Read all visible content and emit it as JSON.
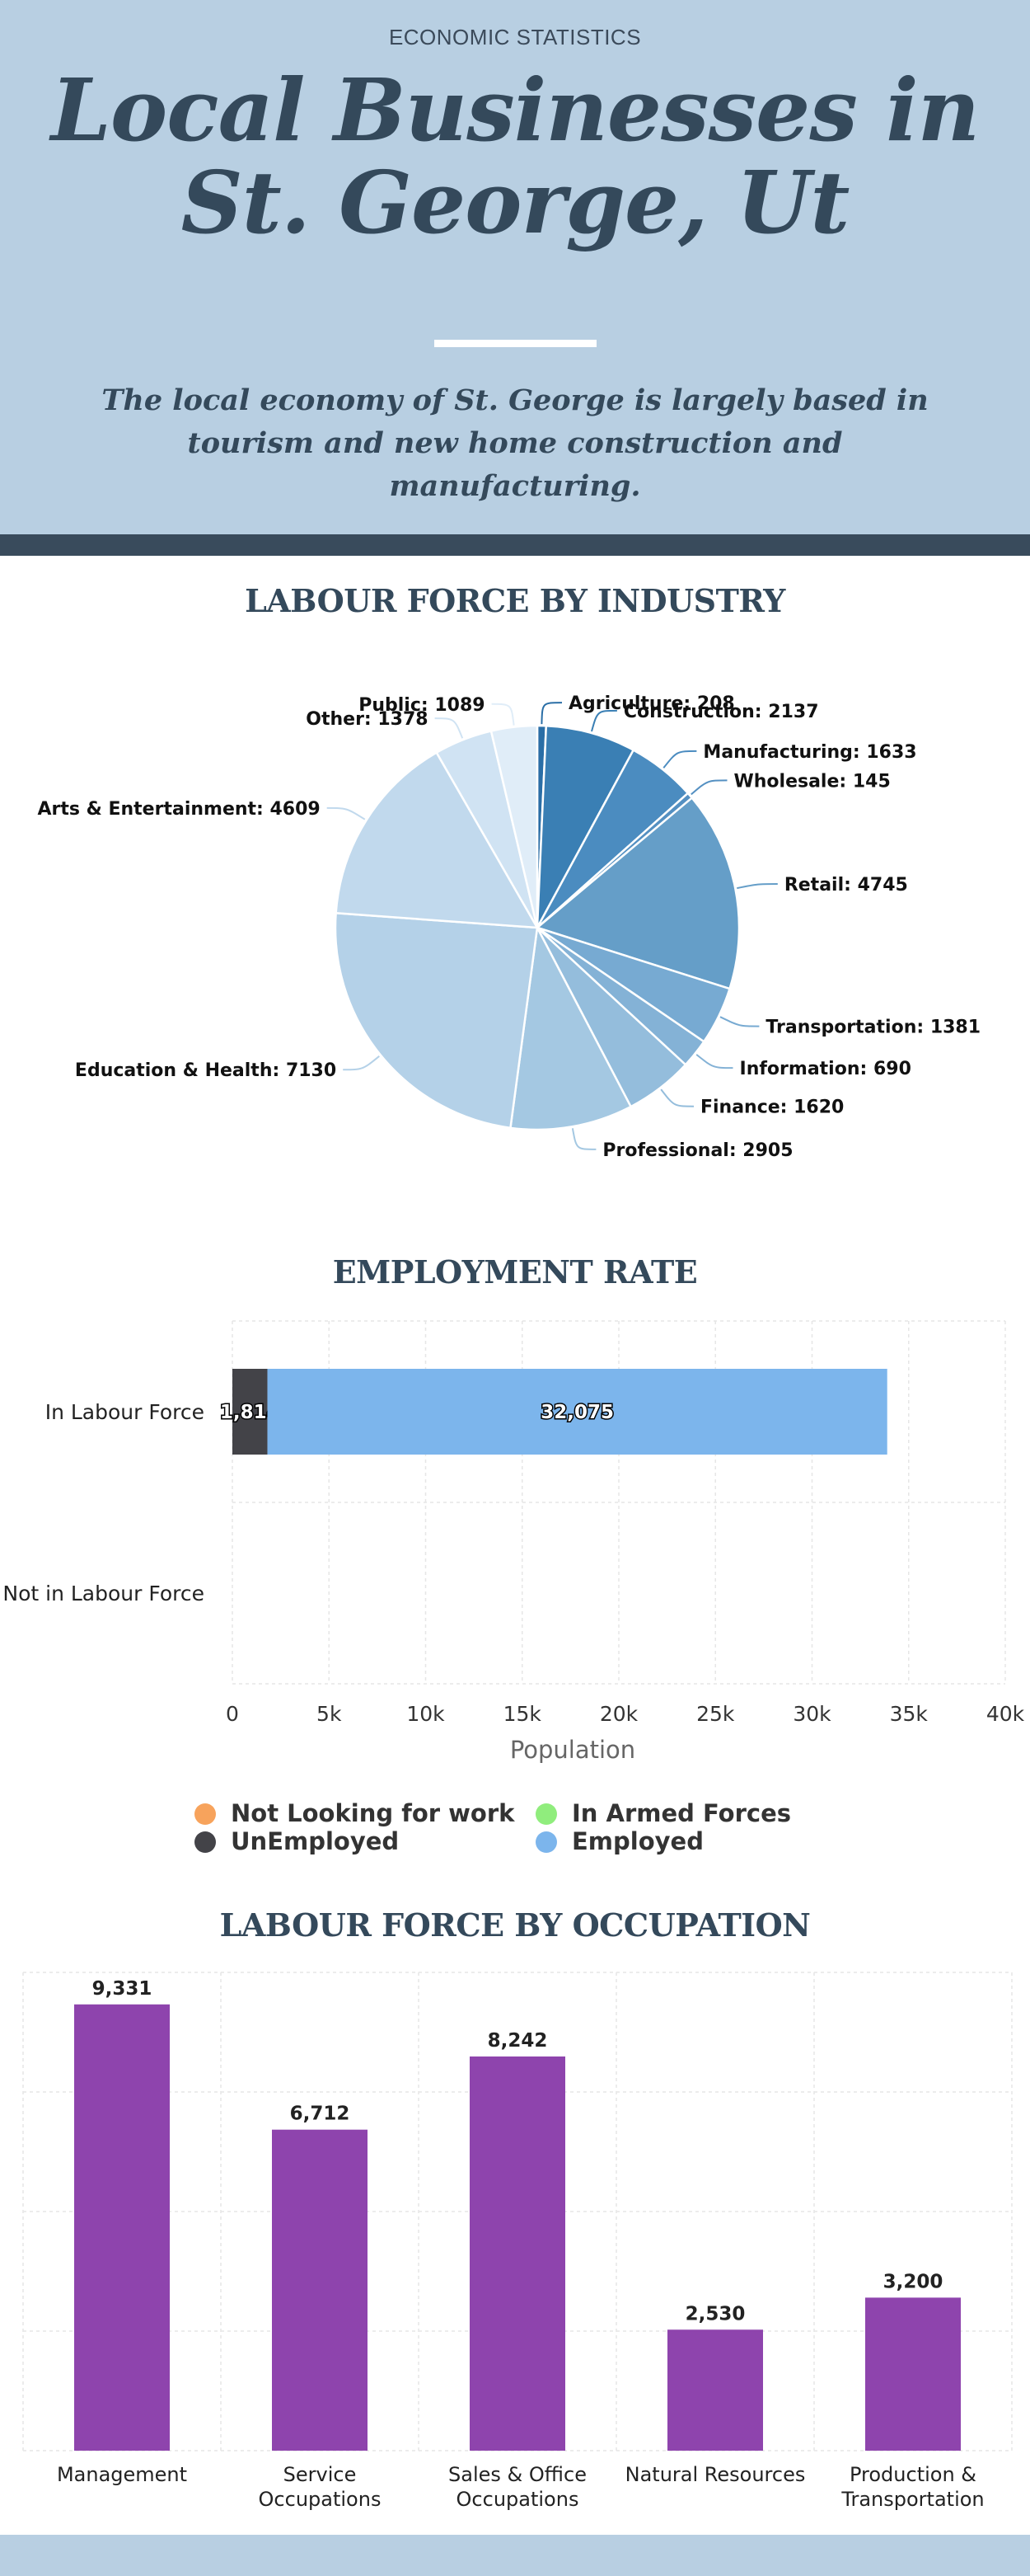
{
  "header": {
    "eyebrow": "ECONOMIC STATISTICS",
    "title": "Local Businesses in St. George, Ut",
    "subtitle": "The local economy of St. George is largely based in tourism and new home construction and manufacturing."
  },
  "sections": {
    "industry_title": "LABOUR FORCE BY INDUSTRY",
    "employment_title": "EMPLOYMENT RATE",
    "occupation_title": "LABOUR FORCE BY OCCUPATION"
  },
  "colors": {
    "header_bg": "#b8cfe2",
    "dark_band": "#394b5c",
    "heading_text": "#34495b",
    "employed": "#7cb5ec",
    "unemployed": "#434348",
    "not_looking": "#f7a35c",
    "armed_forces": "#90ed7d",
    "occupation_bar": "#8e44ad"
  },
  "chart_data": [
    {
      "type": "pie",
      "title": "",
      "slices": [
        {
          "label": "Agriculture",
          "value": 208,
          "color": "#2a6ea6"
        },
        {
          "label": "Construction",
          "value": 2137,
          "color": "#3a7fb4"
        },
        {
          "label": "Manufacturing",
          "value": 1633,
          "color": "#4b8cc0"
        },
        {
          "label": "Wholesale",
          "value": 145,
          "color": "#5490c2"
        },
        {
          "label": "Retail",
          "value": 4745,
          "color": "#659ec8"
        },
        {
          "label": "Transportation",
          "value": 1381,
          "color": "#77aad2"
        },
        {
          "label": "Information",
          "value": 690,
          "color": "#84b2d6"
        },
        {
          "label": "Finance",
          "value": 1620,
          "color": "#94bddc"
        },
        {
          "label": "Professional",
          "value": 2905,
          "color": "#a4c8e2"
        },
        {
          "label": "Education & Health",
          "value": 7130,
          "color": "#b4d1e8"
        },
        {
          "label": "Arts & Entertainment",
          "value": 4609,
          "color": "#c1d9ed"
        },
        {
          "label": "Other",
          "value": 1378,
          "color": "#d0e3f3"
        },
        {
          "label": "Public",
          "value": 1089,
          "color": "#e0edf8"
        }
      ]
    },
    {
      "type": "bar",
      "orientation": "horizontal",
      "stacked": true,
      "categories": [
        "In Labour Force",
        "Not in Labour Force"
      ],
      "series": [
        {
          "name": "Not Looking for work",
          "values": [
            0,
            0
          ],
          "color": "#f7a35c"
        },
        {
          "name": "UnEmployed",
          "values": [
            1814,
            0
          ],
          "color": "#434348",
          "data_labels": [
            "1,814",
            ""
          ]
        },
        {
          "name": "In Armed Forces",
          "values": [
            0,
            0
          ],
          "color": "#90ed7d"
        },
        {
          "name": "Employed",
          "values": [
            32075,
            0
          ],
          "color": "#7cb5ec",
          "data_labels": [
            "32,075",
            ""
          ]
        }
      ],
      "xlabel": "Population",
      "xlim": [
        0,
        40000
      ],
      "xticks": [
        0,
        5000,
        10000,
        15000,
        20000,
        25000,
        30000,
        35000,
        40000
      ],
      "xtick_labels": [
        "0",
        "5k",
        "10k",
        "15k",
        "20k",
        "25k",
        "30k",
        "35k",
        "40k"
      ],
      "legend_order": [
        "Not Looking for work",
        "In Armed Forces",
        "UnEmployed",
        "Employed"
      ],
      "legend_position": "bottom",
      "grid": true
    },
    {
      "type": "bar",
      "categories": [
        "Management",
        "Service Occupations",
        "Sales & Office Occupations",
        "Natural Resources",
        "Production & Transportation"
      ],
      "category_lines": [
        [
          "Management"
        ],
        [
          "Service",
          "Occupations"
        ],
        [
          "Sales & Office",
          "Occupations"
        ],
        [
          "Natural Resources"
        ],
        [
          "Production &",
          "Transportation"
        ]
      ],
      "values": [
        9331,
        6712,
        8242,
        2530,
        3200
      ],
      "data_labels": [
        "9,331",
        "6,712",
        "8,242",
        "2,530",
        "3,200"
      ],
      "ylim": [
        0,
        10000
      ],
      "color": "#8e44ad",
      "grid": true
    }
  ]
}
